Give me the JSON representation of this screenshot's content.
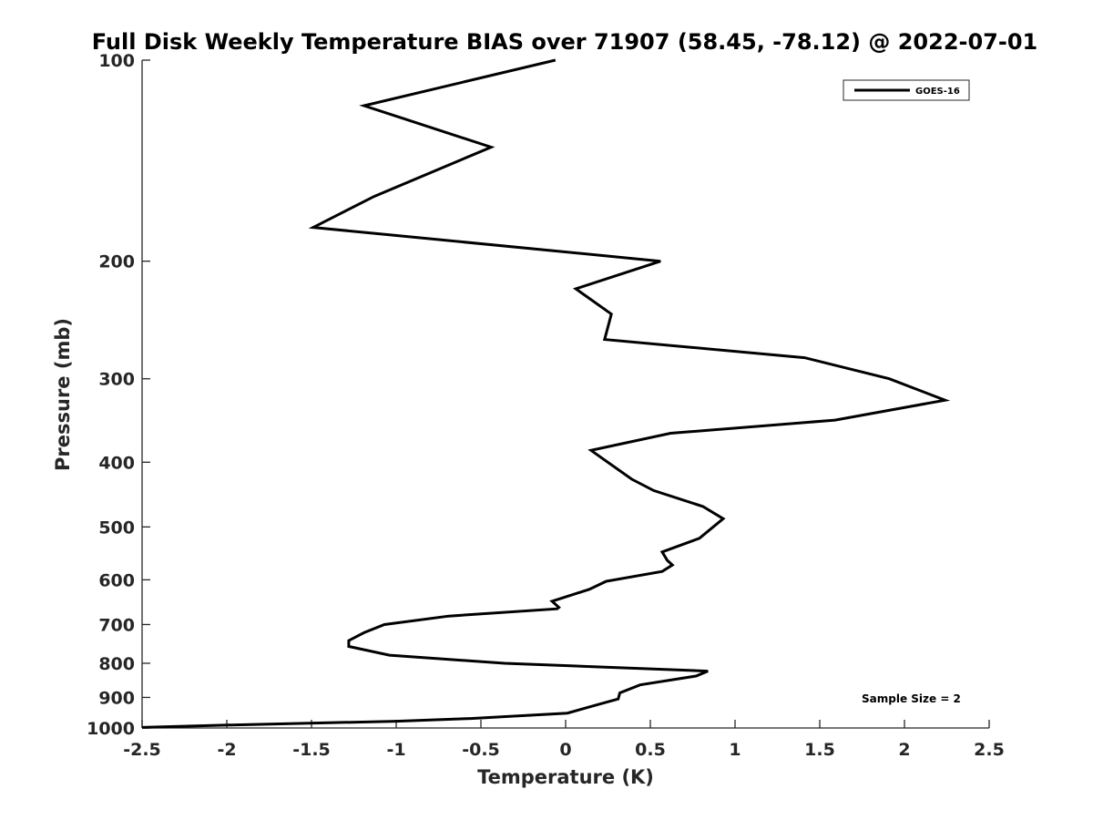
{
  "chart_data": {
    "type": "line",
    "title": "Full Disk Weekly Temperature BIAS over 71907 (58.45, -78.12) @ 2022-07-01",
    "xlabel": "Temperature (K)",
    "ylabel": "Pressure (mb)",
    "xlim": [
      -2.5,
      2.5
    ],
    "ylim": [
      100,
      1000
    ],
    "y_scale": "log",
    "y_reversed": true,
    "x_ticks": [
      "-2.5",
      "-2",
      "-1.5",
      "-1",
      "-0.5",
      "0",
      "0.5",
      "1",
      "1.5",
      "2",
      "2.5"
    ],
    "y_ticks": [
      "100",
      "200",
      "300",
      "400",
      "500",
      "600",
      "700",
      "800",
      "900",
      "1000"
    ],
    "grid": false,
    "legend_position": "top-right",
    "annotation": "Sample Size = 2",
    "series": [
      {
        "name": "GOES-16",
        "color": "#000000",
        "points": [
          {
            "x": -0.06,
            "y": 100
          },
          {
            "x": -1.19,
            "y": 117
          },
          {
            "x": -0.44,
            "y": 135
          },
          {
            "x": -1.13,
            "y": 160
          },
          {
            "x": -1.49,
            "y": 178
          },
          {
            "x": 0.56,
            "y": 200
          },
          {
            "x": 0.06,
            "y": 220
          },
          {
            "x": 0.27,
            "y": 240
          },
          {
            "x": 0.23,
            "y": 262
          },
          {
            "x": 1.41,
            "y": 279
          },
          {
            "x": 1.91,
            "y": 300
          },
          {
            "x": 2.24,
            "y": 323
          },
          {
            "x": 1.59,
            "y": 346
          },
          {
            "x": 0.62,
            "y": 362
          },
          {
            "x": 0.15,
            "y": 384
          },
          {
            "x": 0.39,
            "y": 424
          },
          {
            "x": 0.52,
            "y": 441
          },
          {
            "x": 0.81,
            "y": 466
          },
          {
            "x": 0.93,
            "y": 486
          },
          {
            "x": 0.79,
            "y": 520
          },
          {
            "x": 0.57,
            "y": 545
          },
          {
            "x": 0.6,
            "y": 561
          },
          {
            "x": 0.63,
            "y": 570
          },
          {
            "x": 0.57,
            "y": 583
          },
          {
            "x": 0.24,
            "y": 603
          },
          {
            "x": 0.14,
            "y": 620
          },
          {
            "x": -0.08,
            "y": 646
          },
          {
            "x": -0.04,
            "y": 660
          },
          {
            "x": -0.05,
            "y": 663
          },
          {
            "x": -0.69,
            "y": 680
          },
          {
            "x": -1.07,
            "y": 700
          },
          {
            "x": -1.19,
            "y": 720
          },
          {
            "x": -1.28,
            "y": 740
          },
          {
            "x": -1.28,
            "y": 755
          },
          {
            "x": -1.04,
            "y": 778
          },
          {
            "x": -0.36,
            "y": 800
          },
          {
            "x": 0.84,
            "y": 822
          },
          {
            "x": 0.77,
            "y": 836
          },
          {
            "x": 0.44,
            "y": 862
          },
          {
            "x": 0.32,
            "y": 886
          },
          {
            "x": 0.31,
            "y": 905
          },
          {
            "x": 0.2,
            "y": 921
          },
          {
            "x": 0.01,
            "y": 950
          },
          {
            "x": -0.56,
            "y": 968
          },
          {
            "x": -1.0,
            "y": 977
          },
          {
            "x": -1.99,
            "y": 990
          },
          {
            "x": -2.5,
            "y": 998
          }
        ]
      }
    ]
  }
}
